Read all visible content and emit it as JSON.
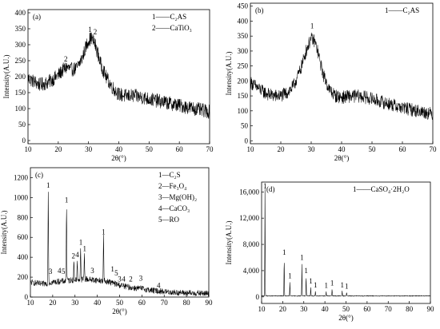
{
  "chart_data": [
    {
      "panel": "(a)",
      "type": "line",
      "xlabel": "2θ(°)",
      "ylabel": "Intensity(A.U.)",
      "xlim": [
        10,
        70
      ],
      "ylim": [
        -10,
        410
      ],
      "xticks": [
        10,
        20,
        30,
        40,
        50,
        60,
        70
      ],
      "yticks": [
        0,
        50,
        100,
        150,
        200,
        250,
        300,
        350,
        400
      ],
      "legend": [
        "1——C₂AS",
        "2——CaTiO₃"
      ],
      "legend_position": "top-right",
      "peak_labels": [
        {
          "text": "1",
          "x": 30.5,
          "y": 335
        },
        {
          "text": "2",
          "x": 32.2,
          "y": 328
        },
        {
          "text": "2",
          "x": 22.5,
          "y": 242
        }
      ],
      "series": [
        {
          "x": [
            10,
            12,
            14,
            16,
            18,
            20,
            22,
            23,
            24,
            26,
            28,
            29,
            30,
            31,
            32,
            33,
            34,
            36,
            38,
            40,
            42,
            45,
            48,
            50,
            55,
            60,
            65,
            70
          ],
          "values": [
            195,
            185,
            175,
            180,
            190,
            205,
            225,
            230,
            222,
            225,
            260,
            290,
            315,
            320,
            305,
            275,
            240,
            195,
            165,
            145,
            140,
            140,
            135,
            130,
            120,
            110,
            100,
            90
          ]
        }
      ]
    },
    {
      "panel": "(b)",
      "type": "line",
      "xlabel": "2θ(°)",
      "ylabel": "Intensity(A.U.)",
      "xlim": [
        10,
        70
      ],
      "ylim": [
        -10,
        460
      ],
      "xticks": [
        10,
        20,
        30,
        40,
        50,
        60,
        70
      ],
      "yticks": [
        0,
        50,
        100,
        150,
        200,
        250,
        300,
        350,
        400,
        450
      ],
      "legend": [
        "1——C₂AS"
      ],
      "legend_position": "top-right",
      "peak_labels": [
        {
          "text": "1",
          "x": 30.3,
          "y": 370
        }
      ],
      "series": [
        {
          "x": [
            10,
            12,
            14,
            16,
            18,
            20,
            22,
            24,
            26,
            27,
            28,
            29,
            30,
            31,
            32,
            33,
            34,
            36,
            38,
            40,
            42,
            45,
            48,
            50,
            55,
            60,
            65,
            70
          ],
          "values": [
            195,
            180,
            165,
            155,
            150,
            150,
            160,
            180,
            225,
            255,
            290,
            320,
            340,
            335,
            305,
            260,
            220,
            170,
            150,
            145,
            148,
            150,
            145,
            140,
            125,
            110,
            100,
            90
          ]
        }
      ]
    },
    {
      "panel": "(c)",
      "type": "line",
      "xlabel": "2θ(°)",
      "ylabel": "Intensity(A.U.)",
      "xlim": [
        10,
        90
      ],
      "ylim": [
        0,
        1300
      ],
      "xticks": [
        10,
        20,
        30,
        40,
        50,
        60,
        70,
        80,
        90
      ],
      "yticks": [
        0,
        200,
        400,
        600,
        800,
        1000,
        1200
      ],
      "legend": [
        "1—C₂S",
        "2—Fe₃O₄",
        "3—Mg(OH)₂",
        "4—CaCO₃",
        "5—RO"
      ],
      "legend_position": "top-right",
      "peaks": [
        {
          "x": 18.0,
          "y": 1070,
          "label": "1"
        },
        {
          "x": 26.2,
          "y": 920,
          "label": "1"
        },
        {
          "x": 29.5,
          "y": 360,
          "label": "2"
        },
        {
          "x": 31.0,
          "y": 350,
          "label": "4"
        },
        {
          "x": 32.5,
          "y": 500,
          "label": "1"
        },
        {
          "x": 34.2,
          "y": 430,
          "label": "1"
        },
        {
          "x": 42.8,
          "y": 600,
          "label": "1"
        }
      ],
      "peak_labels": [
        {
          "text": "1",
          "x": 18.0,
          "y": 1085
        },
        {
          "text": "1",
          "x": 26.2,
          "y": 935
        },
        {
          "text": "3",
          "x": 19.0,
          "y": 215
        },
        {
          "text": "4",
          "x": 23.0,
          "y": 225
        },
        {
          "text": "5",
          "x": 24.8,
          "y": 218
        },
        {
          "text": "2",
          "x": 29.3,
          "y": 375
        },
        {
          "text": "4",
          "x": 31.0,
          "y": 385
        },
        {
          "text": "1",
          "x": 32.6,
          "y": 510
        },
        {
          "text": "1",
          "x": 34.3,
          "y": 445
        },
        {
          "text": "3",
          "x": 37.8,
          "y": 225
        },
        {
          "text": "1",
          "x": 42.8,
          "y": 615
        },
        {
          "text": "1",
          "x": 46.8,
          "y": 240
        },
        {
          "text": "5",
          "x": 48.5,
          "y": 200
        },
        {
          "text": "3",
          "x": 50.0,
          "y": 140
        },
        {
          "text": "4",
          "x": 51.8,
          "y": 140
        },
        {
          "text": "2",
          "x": 55.0,
          "y": 140
        },
        {
          "text": "3",
          "x": 59.5,
          "y": 150
        },
        {
          "text": "4",
          "x": 67.5,
          "y": 75
        }
      ],
      "series": [
        {
          "x": [
            10,
            15,
            20,
            25,
            30,
            35,
            40,
            45,
            50,
            55,
            60,
            65,
            70,
            75,
            80,
            85,
            90
          ],
          "values": [
            150,
            130,
            150,
            160,
            175,
            180,
            170,
            155,
            120,
            95,
            85,
            65,
            55,
            45,
            40,
            38,
            35
          ]
        }
      ]
    },
    {
      "panel": "(d)",
      "type": "line",
      "xlabel": "2θ(°)",
      "ylabel": "Intensity(A.U.)",
      "xlim": [
        10,
        90
      ],
      "ylim": [
        -1000,
        17500
      ],
      "xticks": [
        10,
        20,
        30,
        40,
        50,
        60,
        70,
        80,
        90
      ],
      "yticks": [
        0,
        4000,
        8000,
        12000,
        16000
      ],
      "ytick_labels": [
        "0",
        "4,000",
        "8,000",
        "12,000",
        "16,000"
      ],
      "legend": [
        "1——CaSO₄·2H₂O"
      ],
      "legend_position": "top-right",
      "peaks": [
        {
          "x": 11.6,
          "y": 16500,
          "label": "1"
        },
        {
          "x": 20.7,
          "y": 5900,
          "label": "1"
        },
        {
          "x": 23.4,
          "y": 2300,
          "label": "1"
        },
        {
          "x": 29.1,
          "y": 5100,
          "label": "1"
        },
        {
          "x": 31.1,
          "y": 3100,
          "label": "1"
        },
        {
          "x": 33.3,
          "y": 1500,
          "label": "1"
        },
        {
          "x": 35.5,
          "y": 900,
          "label": "1"
        },
        {
          "x": 40.6,
          "y": 800,
          "label": "1"
        },
        {
          "x": 43.4,
          "y": 1200,
          "label": "1"
        },
        {
          "x": 48.2,
          "y": 900,
          "label": "1"
        },
        {
          "x": 50.3,
          "y": 700,
          "label": "1"
        }
      ],
      "peak_labels": [
        {
          "text": "1",
          "x": 11.6,
          "y": 16300
        },
        {
          "text": "1",
          "x": 20.7,
          "y": 6200
        },
        {
          "text": "1",
          "x": 23.4,
          "y": 2600
        },
        {
          "text": "1",
          "x": 29.1,
          "y": 5400
        },
        {
          "text": "1",
          "x": 31.1,
          "y": 3400
        },
        {
          "text": "1",
          "x": 33.3,
          "y": 1800
        },
        {
          "text": "1",
          "x": 35.5,
          "y": 1200
        },
        {
          "text": "1",
          "x": 40.6,
          "y": 1100
        },
        {
          "text": "1",
          "x": 43.4,
          "y": 1500
        },
        {
          "text": "1",
          "x": 48.2,
          "y": 1200
        },
        {
          "text": "1",
          "x": 50.3,
          "y": 1000
        }
      ],
      "series": [
        {
          "x": [
            10,
            20,
            30,
            40,
            50,
            60,
            70,
            80,
            90
          ],
          "values": [
            150,
            150,
            150,
            150,
            150,
            150,
            150,
            150,
            150
          ]
        }
      ]
    }
  ]
}
